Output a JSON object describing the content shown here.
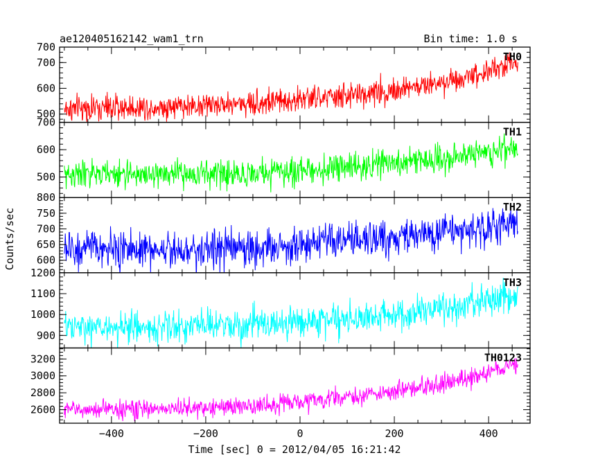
{
  "chart_data": {
    "type": "line",
    "title": "ae120405162142_wam1_trn",
    "bin_time": "Bin time: 1.0 s",
    "xlabel": "Time [sec] 0 = 2012/04/05 16:21:42",
    "ylabel": "Counts/sec",
    "xlim": [
      -510,
      488
    ],
    "xticks": [
      -400,
      -200,
      0,
      200,
      400
    ],
    "x_range": [
      -500,
      462
    ],
    "grid": false,
    "panels": [
      {
        "name": "TH0",
        "color": "#ff0000",
        "ylim": [
          468,
          760
        ],
        "yticks": [
          500,
          600,
          700
        ],
        "top_label": "700",
        "trend": [
          [
            -500,
            520
          ],
          [
            -300,
            528
          ],
          [
            -100,
            543
          ],
          [
            100,
            570
          ],
          [
            250,
            605
          ],
          [
            350,
            645
          ],
          [
            462,
            698
          ]
        ],
        "noise": 25
      },
      {
        "name": "TH1",
        "color": "#00ff00",
        "ylim": [
          425,
          700
        ],
        "yticks": [
          500,
          600
        ],
        "top_label": "700",
        "trend": [
          [
            -500,
            510
          ],
          [
            -300,
            510
          ],
          [
            -100,
            512
          ],
          [
            100,
            535
          ],
          [
            250,
            560
          ],
          [
            350,
            580
          ],
          [
            462,
            610
          ]
        ],
        "noise": 25
      },
      {
        "name": "TH2",
        "color": "#0000ff",
        "ylim": [
          560,
          800
        ],
        "yticks": [
          600,
          650,
          700,
          750
        ],
        "top_label": "800",
        "trend": [
          [
            -500,
            635
          ],
          [
            -300,
            635
          ],
          [
            -100,
            638
          ],
          [
            100,
            660
          ],
          [
            250,
            680
          ],
          [
            350,
            695
          ],
          [
            462,
            715
          ]
        ],
        "noise": 30
      },
      {
        "name": "TH3",
        "color": "#00ffff",
        "ylim": [
          840,
          1200
        ],
        "yticks": [
          900,
          1000,
          1100
        ],
        "top_label": "1200",
        "trend": [
          [
            -500,
            935
          ],
          [
            -300,
            940
          ],
          [
            -100,
            950
          ],
          [
            100,
            980
          ],
          [
            250,
            1010
          ],
          [
            350,
            1040
          ],
          [
            462,
            1100
          ]
        ],
        "noise": 38
      },
      {
        "name": "TH0123",
        "color": "#ff00ff",
        "ylim": [
          2440,
          3330
        ],
        "yticks": [
          2600,
          2800,
          3000,
          3200
        ],
        "top_label": "",
        "trend": [
          [
            -500,
            2600
          ],
          [
            -300,
            2610
          ],
          [
            -100,
            2640
          ],
          [
            100,
            2750
          ],
          [
            250,
            2850
          ],
          [
            350,
            2960
          ],
          [
            462,
            3150
          ]
        ],
        "noise": 55
      }
    ]
  }
}
